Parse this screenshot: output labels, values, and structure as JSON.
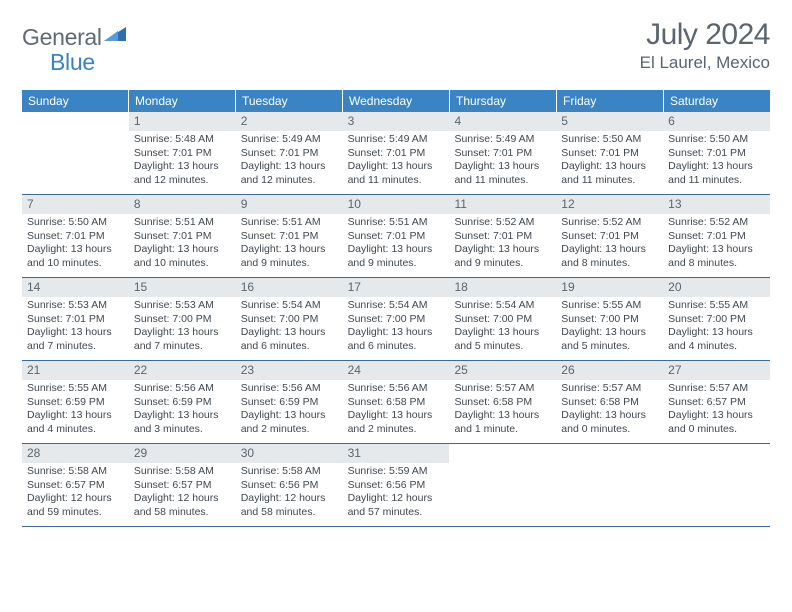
{
  "logo": {
    "word1": "General",
    "word2": "Blue"
  },
  "title": "July 2024",
  "location": "El Laurel, Mexico",
  "colors": {
    "header_bg": "#3b84c4",
    "header_text": "#ffffff",
    "daynum_bg": "#e6e9ec",
    "text": "#404850",
    "rule": "#3b6a9a",
    "logo_gray": "#5f6a72",
    "logo_blue": "#3b82c4"
  },
  "dayNames": [
    "Sunday",
    "Monday",
    "Tuesday",
    "Wednesday",
    "Thursday",
    "Friday",
    "Saturday"
  ],
  "weeks": [
    [
      {
        "n": "",
        "sr": "",
        "ss": "",
        "dl": ""
      },
      {
        "n": "1",
        "sr": "Sunrise: 5:48 AM",
        "ss": "Sunset: 7:01 PM",
        "dl": "Daylight: 13 hours and 12 minutes."
      },
      {
        "n": "2",
        "sr": "Sunrise: 5:49 AM",
        "ss": "Sunset: 7:01 PM",
        "dl": "Daylight: 13 hours and 12 minutes."
      },
      {
        "n": "3",
        "sr": "Sunrise: 5:49 AM",
        "ss": "Sunset: 7:01 PM",
        "dl": "Daylight: 13 hours and 11 minutes."
      },
      {
        "n": "4",
        "sr": "Sunrise: 5:49 AM",
        "ss": "Sunset: 7:01 PM",
        "dl": "Daylight: 13 hours and 11 minutes."
      },
      {
        "n": "5",
        "sr": "Sunrise: 5:50 AM",
        "ss": "Sunset: 7:01 PM",
        "dl": "Daylight: 13 hours and 11 minutes."
      },
      {
        "n": "6",
        "sr": "Sunrise: 5:50 AM",
        "ss": "Sunset: 7:01 PM",
        "dl": "Daylight: 13 hours and 11 minutes."
      }
    ],
    [
      {
        "n": "7",
        "sr": "Sunrise: 5:50 AM",
        "ss": "Sunset: 7:01 PM",
        "dl": "Daylight: 13 hours and 10 minutes."
      },
      {
        "n": "8",
        "sr": "Sunrise: 5:51 AM",
        "ss": "Sunset: 7:01 PM",
        "dl": "Daylight: 13 hours and 10 minutes."
      },
      {
        "n": "9",
        "sr": "Sunrise: 5:51 AM",
        "ss": "Sunset: 7:01 PM",
        "dl": "Daylight: 13 hours and 9 minutes."
      },
      {
        "n": "10",
        "sr": "Sunrise: 5:51 AM",
        "ss": "Sunset: 7:01 PM",
        "dl": "Daylight: 13 hours and 9 minutes."
      },
      {
        "n": "11",
        "sr": "Sunrise: 5:52 AM",
        "ss": "Sunset: 7:01 PM",
        "dl": "Daylight: 13 hours and 9 minutes."
      },
      {
        "n": "12",
        "sr": "Sunrise: 5:52 AM",
        "ss": "Sunset: 7:01 PM",
        "dl": "Daylight: 13 hours and 8 minutes."
      },
      {
        "n": "13",
        "sr": "Sunrise: 5:52 AM",
        "ss": "Sunset: 7:01 PM",
        "dl": "Daylight: 13 hours and 8 minutes."
      }
    ],
    [
      {
        "n": "14",
        "sr": "Sunrise: 5:53 AM",
        "ss": "Sunset: 7:01 PM",
        "dl": "Daylight: 13 hours and 7 minutes."
      },
      {
        "n": "15",
        "sr": "Sunrise: 5:53 AM",
        "ss": "Sunset: 7:00 PM",
        "dl": "Daylight: 13 hours and 7 minutes."
      },
      {
        "n": "16",
        "sr": "Sunrise: 5:54 AM",
        "ss": "Sunset: 7:00 PM",
        "dl": "Daylight: 13 hours and 6 minutes."
      },
      {
        "n": "17",
        "sr": "Sunrise: 5:54 AM",
        "ss": "Sunset: 7:00 PM",
        "dl": "Daylight: 13 hours and 6 minutes."
      },
      {
        "n": "18",
        "sr": "Sunrise: 5:54 AM",
        "ss": "Sunset: 7:00 PM",
        "dl": "Daylight: 13 hours and 5 minutes."
      },
      {
        "n": "19",
        "sr": "Sunrise: 5:55 AM",
        "ss": "Sunset: 7:00 PM",
        "dl": "Daylight: 13 hours and 5 minutes."
      },
      {
        "n": "20",
        "sr": "Sunrise: 5:55 AM",
        "ss": "Sunset: 7:00 PM",
        "dl": "Daylight: 13 hours and 4 minutes."
      }
    ],
    [
      {
        "n": "21",
        "sr": "Sunrise: 5:55 AM",
        "ss": "Sunset: 6:59 PM",
        "dl": "Daylight: 13 hours and 4 minutes."
      },
      {
        "n": "22",
        "sr": "Sunrise: 5:56 AM",
        "ss": "Sunset: 6:59 PM",
        "dl": "Daylight: 13 hours and 3 minutes."
      },
      {
        "n": "23",
        "sr": "Sunrise: 5:56 AM",
        "ss": "Sunset: 6:59 PM",
        "dl": "Daylight: 13 hours and 2 minutes."
      },
      {
        "n": "24",
        "sr": "Sunrise: 5:56 AM",
        "ss": "Sunset: 6:58 PM",
        "dl": "Daylight: 13 hours and 2 minutes."
      },
      {
        "n": "25",
        "sr": "Sunrise: 5:57 AM",
        "ss": "Sunset: 6:58 PM",
        "dl": "Daylight: 13 hours and 1 minute."
      },
      {
        "n": "26",
        "sr": "Sunrise: 5:57 AM",
        "ss": "Sunset: 6:58 PM",
        "dl": "Daylight: 13 hours and 0 minutes."
      },
      {
        "n": "27",
        "sr": "Sunrise: 5:57 AM",
        "ss": "Sunset: 6:57 PM",
        "dl": "Daylight: 13 hours and 0 minutes."
      }
    ],
    [
      {
        "n": "28",
        "sr": "Sunrise: 5:58 AM",
        "ss": "Sunset: 6:57 PM",
        "dl": "Daylight: 12 hours and 59 minutes."
      },
      {
        "n": "29",
        "sr": "Sunrise: 5:58 AM",
        "ss": "Sunset: 6:57 PM",
        "dl": "Daylight: 12 hours and 58 minutes."
      },
      {
        "n": "30",
        "sr": "Sunrise: 5:58 AM",
        "ss": "Sunset: 6:56 PM",
        "dl": "Daylight: 12 hours and 58 minutes."
      },
      {
        "n": "31",
        "sr": "Sunrise: 5:59 AM",
        "ss": "Sunset: 6:56 PM",
        "dl": "Daylight: 12 hours and 57 minutes."
      },
      {
        "n": "",
        "sr": "",
        "ss": "",
        "dl": ""
      },
      {
        "n": "",
        "sr": "",
        "ss": "",
        "dl": ""
      },
      {
        "n": "",
        "sr": "",
        "ss": "",
        "dl": ""
      }
    ]
  ]
}
